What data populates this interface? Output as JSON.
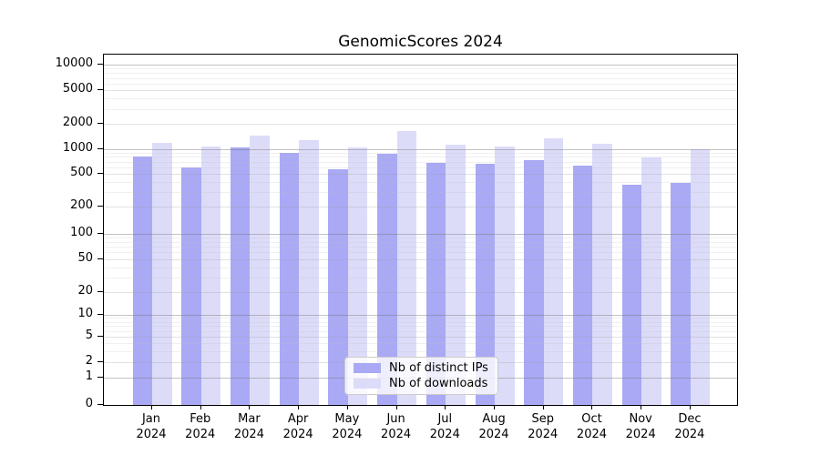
{
  "figure": {
    "title": "GenomicScores 2024"
  },
  "chart_data": {
    "type": "bar",
    "title": "GenomicScores 2024",
    "categories": [
      "Jan",
      "Feb",
      "Mar",
      "Apr",
      "May",
      "Jun",
      "Jul",
      "Aug",
      "Sep",
      "Oct",
      "Nov",
      "Dec"
    ],
    "x_tick_second_line": "2024",
    "series": [
      {
        "name": "Nb of distinct IPs",
        "color": "#a9a9f5",
        "values": [
          810,
          590,
          1030,
          890,
          570,
          880,
          670,
          650,
          720,
          630,
          370,
          390
        ]
      },
      {
        "name": "Nb of downloads",
        "color": "#dcdcf9",
        "values": [
          1190,
          1080,
          1430,
          1260,
          1050,
          1650,
          1110,
          1080,
          1330,
          1160,
          780,
          1000
        ]
      }
    ],
    "yaxis": {
      "ticks": [
        0,
        1,
        2,
        5,
        10,
        20,
        50,
        100,
        200,
        500,
        1000,
        2000,
        5000,
        10000
      ],
      "scale": "log-with-zero-baseline"
    },
    "xlabel": "",
    "ylabel": "",
    "grid": true,
    "legend": {
      "position": "inside-bottom-center",
      "entries": [
        "Nb of distinct IPs",
        "Nb of downloads"
      ]
    }
  },
  "colors": {
    "bar_distinct_ips": "#a9a9f5",
    "bar_downloads": "#dcdcf9",
    "grid_major": "rgba(120,120,120,0.45)",
    "grid_labeled": "rgba(160,160,160,0.30)",
    "grid_minor": "rgba(185,185,185,0.22)",
    "axis": "#000000",
    "background": "#ffffff"
  }
}
